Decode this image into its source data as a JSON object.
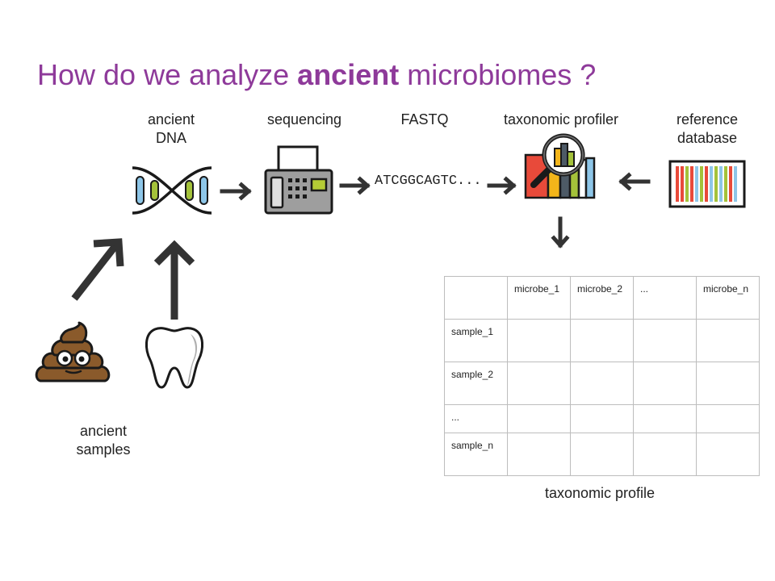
{
  "title": {
    "prefix": "How do we analyze ",
    "bold": "ancient",
    "suffix": " microbiomes ?"
  },
  "labels": {
    "ancient_dna": [
      "ancient",
      "DNA"
    ],
    "sequencing": "sequencing",
    "fastq": "FASTQ",
    "profiler": "taxonomic profiler",
    "reference": [
      "reference",
      "database"
    ],
    "samples": [
      "ancient",
      "samples"
    ],
    "profile": "taxonomic profile"
  },
  "sequence_text": "ATCGGCAGTC...",
  "table": {
    "columns": [
      "",
      "microbe_1",
      "microbe_2",
      "...",
      "microbe_n"
    ],
    "rows": [
      "sample_1",
      "sample_2",
      "...",
      "sample_n"
    ]
  },
  "icons": [
    "dna-icon",
    "sequencer-icon",
    "profiler-icon",
    "barcode-icon",
    "poop-icon",
    "tooth-icon"
  ],
  "colors": {
    "title": "#8e3a9a",
    "arrow": "#333333"
  }
}
